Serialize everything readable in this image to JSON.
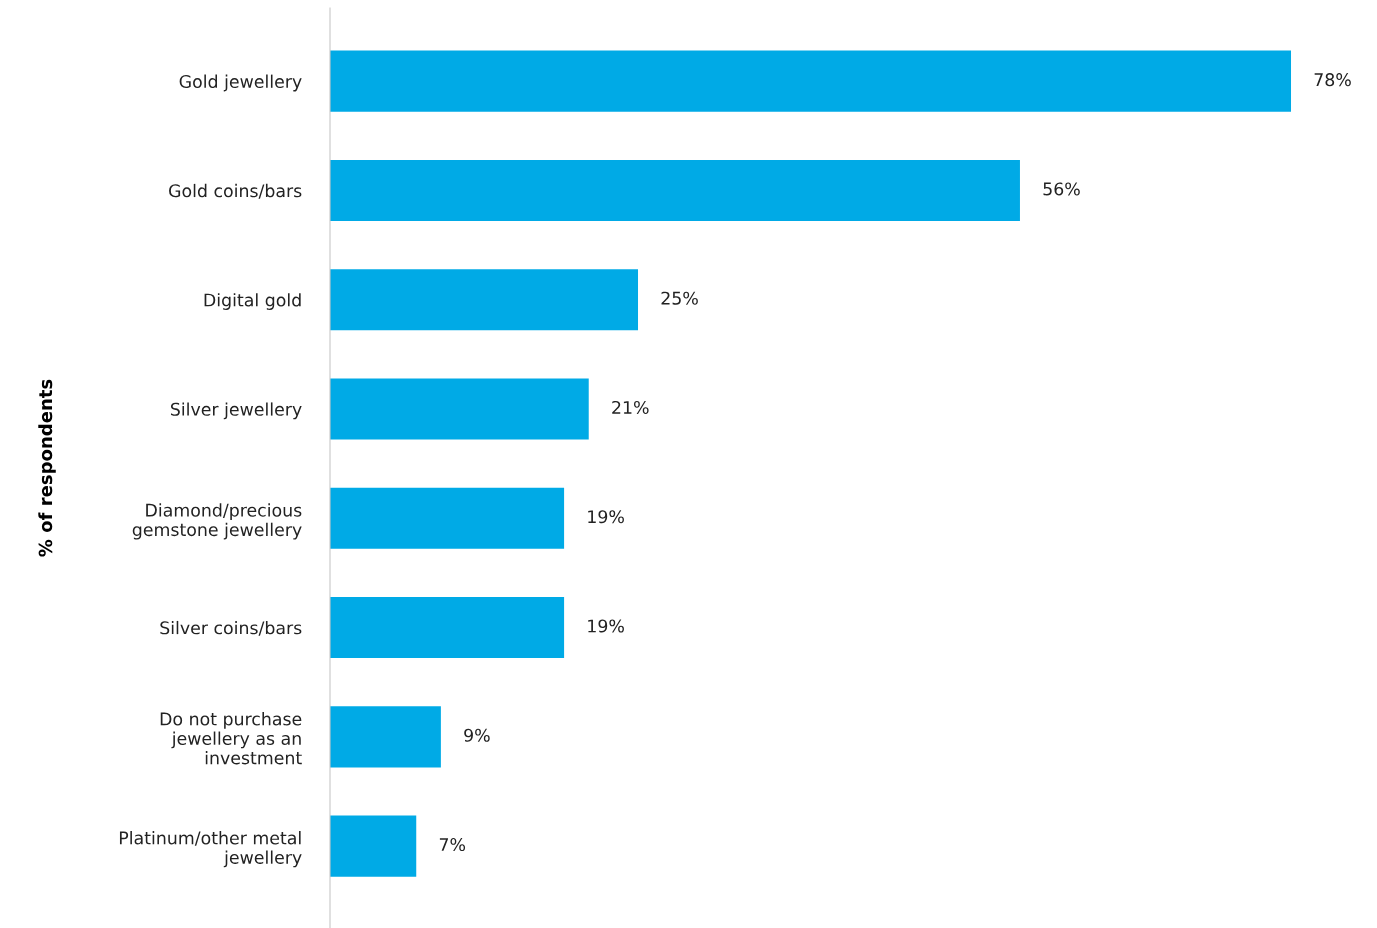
{
  "chart_data": {
    "type": "bar",
    "orientation": "horizontal",
    "ylabel": "% of respondents",
    "categories": [
      "Gold jewellery",
      "Gold coins/bars",
      "Digital gold",
      "Silver jewellery",
      "Diamond/precious\ngemstone jewellery",
      "Silver coins/bars",
      "Do not purchase\njewellery as an\ninvestment",
      "Platinum/other metal\njewellery"
    ],
    "values": [
      78,
      56,
      25,
      21,
      19,
      19,
      9,
      7
    ],
    "value_labels": [
      "78%",
      "56%",
      "25%",
      "21%",
      "19%",
      "19%",
      "9%",
      "7%"
    ],
    "color": "#00aae6",
    "grid": false,
    "legend": false
  }
}
